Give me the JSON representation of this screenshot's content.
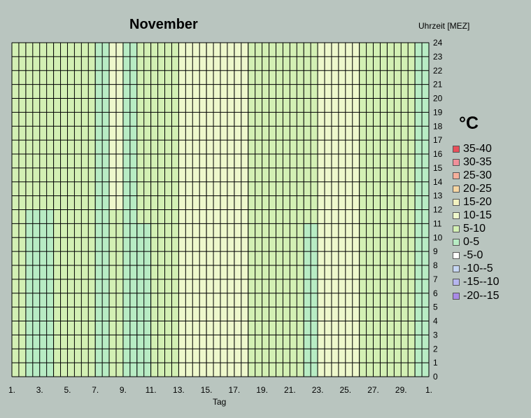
{
  "chart_data": {
    "type": "heatmap",
    "title": "November",
    "xlabel": "Tag",
    "ylabel": "Uhrzeit [MEZ]",
    "x_ticks": [
      "1.",
      "3.",
      "5.",
      "7.",
      "9.",
      "11.",
      "13.",
      "15.",
      "17.",
      "19.",
      "21.",
      "23.",
      "25.",
      "27.",
      "29.",
      "1."
    ],
    "y_ticks": [
      "0",
      "1",
      "2",
      "3",
      "4",
      "5",
      "6",
      "7",
      "8",
      "9",
      "10",
      "11",
      "12",
      "13",
      "14",
      "15",
      "16",
      "17",
      "18",
      "19",
      "20",
      "21",
      "22",
      "23",
      "24"
    ],
    "days": 31,
    "hours": 24,
    "legend_title": "°C",
    "legend": [
      {
        "label": "35-40",
        "color": "#e8505a"
      },
      {
        "label": "30-35",
        "color": "#f0909a"
      },
      {
        "label": "25-30",
        "color": "#f6b09c"
      },
      {
        "label": "20-25",
        "color": "#f6d6a2"
      },
      {
        "label": "15-20",
        "color": "#f2f2c0"
      },
      {
        "label": "10-15",
        "color": "#eef8cc"
      },
      {
        "label": "5-10",
        "color": "#d3f0b4"
      },
      {
        "label": "0-5",
        "color": "#b8ecc4"
      },
      {
        "label": "-5-0",
        "color": "#ffffff"
      },
      {
        "label": "-10--5",
        "color": "#c6d6f2"
      },
      {
        "label": "-15--10",
        "color": "#b6b6ee"
      },
      {
        "label": "-20--15",
        "color": "#a98be6"
      }
    ],
    "bands": [
      {
        "x0": 1,
        "x1": 2,
        "band": "5-10"
      },
      {
        "x0": 2,
        "x1": 4,
        "band": "0-5",
        "y1": 12
      },
      {
        "x0": 4,
        "x1": 7,
        "band": "5-10"
      },
      {
        "x0": 7,
        "x1": 8,
        "band": "0-5"
      },
      {
        "x0": 8,
        "x1": 9,
        "band": "10-15",
        "y0": 12
      },
      {
        "x0": 9,
        "x1": 10,
        "band": "0-5"
      },
      {
        "x0": 10,
        "x1": 11,
        "band": "0-5",
        "y1": 11
      },
      {
        "x0": 11,
        "x1": 13,
        "band": "5-10"
      },
      {
        "x0": 13,
        "x1": 15,
        "band": "10-15"
      },
      {
        "x0": 15,
        "x1": 16,
        "band": "15-20",
        "y0": 13,
        "y1": 17
      },
      {
        "x0": 15,
        "x1": 17,
        "band": "10-15"
      },
      {
        "x0": 17,
        "x1": 18,
        "band": "10-15"
      },
      {
        "x0": 18,
        "x1": 22,
        "band": "5-10"
      },
      {
        "x0": 22,
        "x1": 23,
        "band": "0-5",
        "y1": 11
      },
      {
        "x0": 23,
        "x1": 26,
        "band": "10-15"
      },
      {
        "x0": 26,
        "x1": 28,
        "band": "5-10"
      },
      {
        "x0": 28,
        "x1": 30,
        "band": "5-10"
      },
      {
        "x0": 30,
        "x1": 31,
        "band": "0-5"
      }
    ],
    "grid": true,
    "legend_position": "right"
  }
}
